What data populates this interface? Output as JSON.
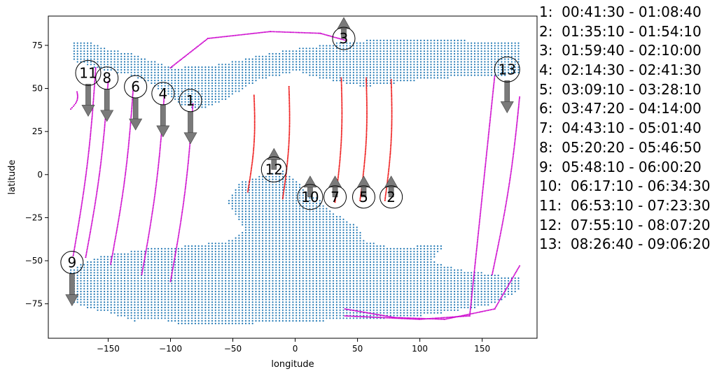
{
  "chart_data": {
    "type": "scatter",
    "xlabel": "longitude",
    "ylabel": "latitude",
    "xlim": [
      -198,
      194
    ],
    "ylim": [
      -95,
      92
    ],
    "xticks": [
      -150,
      -100,
      -50,
      0,
      50,
      100,
      150
    ],
    "yticks": [
      -75,
      -50,
      -25,
      0,
      25,
      50,
      75
    ],
    "xtick_labels": [
      "−150",
      "−100",
      "−50",
      "0",
      "50",
      "100",
      "150"
    ],
    "ytick_labels": [
      "−75",
      "−50",
      "−25",
      "0",
      "25",
      "50",
      "75"
    ],
    "colors": {
      "land": "#1f77b4",
      "pass_ascending": "#cc00cc",
      "pass_red": "#ee1111",
      "arrow": "#7a7a7a"
    },
    "land_regions": [
      {
        "name": "north",
        "polygon": [
          [
            -180,
            77
          ],
          [
            -165,
            77
          ],
          [
            -150,
            73
          ],
          [
            -130,
            70
          ],
          [
            -110,
            65
          ],
          [
            -95,
            62
          ],
          [
            -60,
            64
          ],
          [
            -30,
            69
          ],
          [
            0,
            73
          ],
          [
            30,
            76
          ],
          [
            40,
            77
          ],
          [
            80,
            79
          ],
          [
            180,
            77
          ],
          [
            180,
            58
          ],
          [
            150,
            57
          ],
          [
            120,
            56
          ],
          [
            100,
            55
          ],
          [
            80,
            53
          ],
          [
            55,
            51
          ],
          [
            40,
            53
          ],
          [
            20,
            56
          ],
          [
            0,
            60
          ],
          [
            -10,
            58
          ],
          [
            -30,
            55
          ],
          [
            -45,
            48
          ],
          [
            -60,
            42
          ],
          [
            -75,
            38
          ],
          [
            -90,
            40
          ],
          [
            -100,
            45
          ],
          [
            -110,
            50
          ],
          [
            -120,
            54
          ],
          [
            -135,
            58
          ],
          [
            -150,
            60
          ],
          [
            -165,
            63
          ],
          [
            -178,
            66
          ]
        ]
      },
      {
        "name": "south",
        "polygon": [
          [
            -180,
            -55
          ],
          [
            -160,
            -48
          ],
          [
            -120,
            -43
          ],
          [
            -80,
            -41
          ],
          [
            -50,
            -38
          ],
          [
            -40,
            -32
          ],
          [
            -55,
            -16
          ],
          [
            -45,
            -5
          ],
          [
            -30,
            -1
          ],
          [
            -10,
            2
          ],
          [
            -5,
            0
          ],
          [
            10,
            -10
          ],
          [
            20,
            -15
          ],
          [
            30,
            -22
          ],
          [
            50,
            -30
          ],
          [
            55,
            -38
          ],
          [
            75,
            -42
          ],
          [
            120,
            -41
          ],
          [
            110,
            -50
          ],
          [
            130,
            -55
          ],
          [
            180,
            -60
          ],
          [
            180,
            -67
          ],
          [
            160,
            -75
          ],
          [
            140,
            -78
          ],
          [
            100,
            -82
          ],
          [
            60,
            -84
          ],
          [
            20,
            -85
          ],
          [
            -20,
            -86
          ],
          [
            -50,
            -87
          ],
          [
            -90,
            -87
          ],
          [
            -110,
            -84
          ],
          [
            -130,
            -85
          ],
          [
            -150,
            -80
          ],
          [
            -170,
            -77
          ],
          [
            -180,
            -73
          ]
        ]
      }
    ],
    "passes": [
      {
        "color": "magenta",
        "points": [
          [
            -82,
            41
          ],
          [
            -100,
            -62
          ]
        ]
      },
      {
        "color": "red",
        "points": [
          [
            77,
            55
          ],
          [
            72,
            -15
          ]
        ]
      },
      {
        "color": "magenta",
        "points": [
          [
            -100,
            62
          ],
          [
            -70,
            79
          ],
          [
            -20,
            83
          ],
          [
            20,
            82
          ],
          [
            40,
            78
          ]
        ]
      },
      {
        "color": "magenta",
        "points": [
          [
            -105,
            46
          ],
          [
            -123,
            -58
          ]
        ]
      },
      {
        "color": "red",
        "points": [
          [
            57,
            56
          ],
          [
            52,
            -15
          ]
        ]
      },
      {
        "color": "magenta",
        "points": [
          [
            -130,
            49
          ],
          [
            -148,
            -52
          ]
        ]
      },
      {
        "color": "red",
        "points": [
          [
            37,
            56
          ],
          [
            32,
            -16
          ]
        ]
      },
      {
        "color": "magenta",
        "points": [
          [
            -150,
            54
          ],
          [
            -168,
            -48
          ]
        ]
      },
      {
        "color": "magenta",
        "points": [
          [
            -175,
            48
          ],
          [
            -180,
            38
          ]
        ]
      },
      {
        "color": "red",
        "points": [
          [
            -5,
            51
          ],
          [
            -10,
            -14
          ]
        ]
      },
      {
        "color": "magenta",
        "points": [
          [
            -160,
            62
          ],
          [
            -178,
            -47
          ]
        ]
      },
      {
        "color": "red",
        "points": [
          [
            -33,
            46
          ],
          [
            -38,
            -10
          ]
        ]
      },
      {
        "color": "magenta",
        "points": [
          [
            160,
            57
          ],
          [
            140,
            -82
          ],
          [
            100,
            -84
          ],
          [
            40,
            -82
          ]
        ]
      },
      {
        "color": "magenta",
        "points": [
          [
            180,
            45
          ],
          [
            158,
            -58
          ]
        ]
      },
      {
        "color": "magenta",
        "points": [
          [
            180,
            -53
          ],
          [
            160,
            -78
          ],
          [
            120,
            -84
          ],
          [
            80,
            -83
          ],
          [
            40,
            -78
          ]
        ]
      }
    ],
    "markers": [
      {
        "label": "1",
        "lon": -84,
        "lat": 43,
        "arrow": "down"
      },
      {
        "label": "2",
        "lon": 77,
        "lat": -13,
        "arrow": "up"
      },
      {
        "label": "3",
        "lon": 39,
        "lat": 79,
        "arrow": "up"
      },
      {
        "label": "4",
        "lon": -106,
        "lat": 47,
        "arrow": "down"
      },
      {
        "label": "5",
        "lon": 55,
        "lat": -13,
        "arrow": "up"
      },
      {
        "label": "6",
        "lon": -128,
        "lat": 51,
        "arrow": "down"
      },
      {
        "label": "7",
        "lon": 32,
        "lat": -13,
        "arrow": "up"
      },
      {
        "label": "8",
        "lon": -151,
        "lat": 56,
        "arrow": "down"
      },
      {
        "label": "9",
        "lon": -179,
        "lat": -51,
        "arrow": "down"
      },
      {
        "label": "10",
        "lon": 12,
        "lat": -13,
        "arrow": "up"
      },
      {
        "label": "11",
        "lon": -166,
        "lat": 59,
        "arrow": "down"
      },
      {
        "label": "12",
        "lon": -17,
        "lat": 3,
        "arrow": "up"
      },
      {
        "label": "13",
        "lon": 170,
        "lat": 61,
        "arrow": "down"
      }
    ]
  },
  "legend": [
    "1:  00:41:30 - 01:08:40",
    "2:  01:35:10 - 01:54:10",
    "3:  01:59:40 - 02:10:00",
    "4:  02:14:30 - 02:41:30",
    "5:  03:09:10 - 03:28:10",
    "6:  03:47:20 - 04:14:00",
    "7:  04:43:10 - 05:01:40",
    "8:  05:20:20 - 05:46:50",
    "9:  05:48:10 - 06:00:20",
    "10:  06:17:10 - 06:34:30",
    "11:  06:53:10 - 07:23:30",
    "12:  07:55:10 - 08:07:20",
    "13:  08:26:40 - 09:06:20"
  ]
}
